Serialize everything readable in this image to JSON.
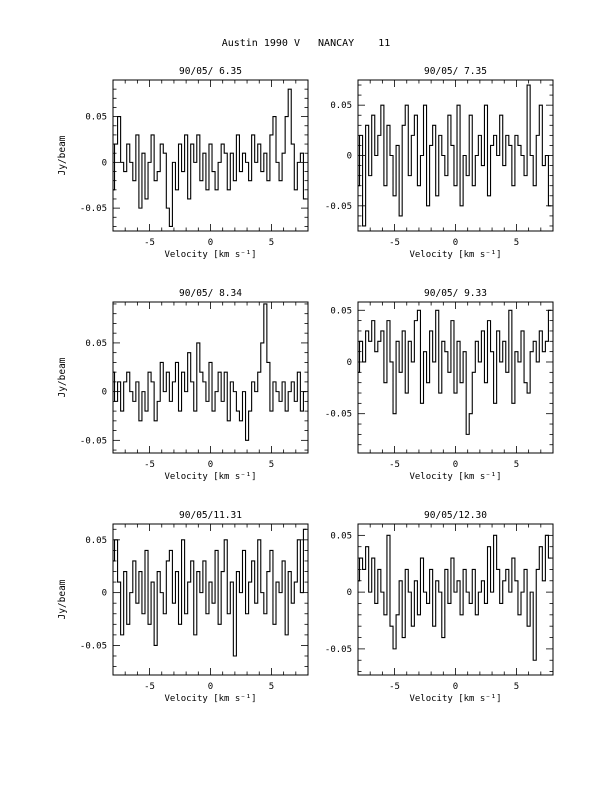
{
  "title": "Austin 1990 V   NANCAY    11",
  "chart_data": [
    {
      "type": "line",
      "title": "90/05/ 6.35",
      "xlabel": "Velocity [km s⁻¹]",
      "ylabel": "Jy/beam",
      "xlim": [
        -8,
        8
      ],
      "ylim": [
        -0.075,
        0.09
      ],
      "xticks": [
        -5,
        0,
        5
      ],
      "xtick_labels": [
        "-5",
        "0",
        "5"
      ],
      "yticks": [
        0.05,
        0,
        -0.05
      ],
      "ytick_labels": [
        "0.05",
        "0",
        "-0.05"
      ],
      "x": [
        -8.0,
        -7.75,
        -7.5,
        -7.25,
        -7.0,
        -6.75,
        -6.5,
        -6.25,
        -6.0,
        -5.75,
        -5.5,
        -5.25,
        -5.0,
        -4.75,
        -4.5,
        -4.25,
        -4.0,
        -3.75,
        -3.5,
        -3.25,
        -3.0,
        -2.75,
        -2.5,
        -2.25,
        -2.0,
        -1.75,
        -1.5,
        -1.25,
        -1.0,
        -0.75,
        -0.5,
        -0.25,
        0.0,
        0.25,
        0.5,
        0.75,
        1.0,
        1.25,
        1.5,
        1.75,
        2.0,
        2.25,
        2.5,
        2.75,
        3.0,
        3.25,
        3.5,
        3.75,
        4.0,
        4.25,
        4.5,
        4.75,
        5.0,
        5.25,
        5.5,
        5.75,
        6.0,
        6.25,
        6.5,
        6.75,
        7.0,
        7.25,
        7.5,
        7.75
      ],
      "y": [
        -0.03,
        0.02,
        0.05,
        0.0,
        -0.01,
        0.02,
        0.0,
        -0.02,
        0.03,
        -0.05,
        0.01,
        -0.04,
        0.0,
        0.03,
        -0.02,
        -0.01,
        0.02,
        0.01,
        -0.05,
        -0.07,
        0.0,
        -0.03,
        0.02,
        -0.01,
        0.03,
        -0.04,
        0.02,
        0.0,
        0.03,
        -0.02,
        0.01,
        -0.03,
        0.02,
        -0.01,
        -0.03,
        0.0,
        0.02,
        0.01,
        -0.03,
        0.01,
        -0.02,
        0.03,
        -0.01,
        0.01,
        0.0,
        -0.02,
        0.03,
        0.0,
        0.02,
        -0.01,
        0.01,
        -0.02,
        0.03,
        0.05,
        0.0,
        -0.02,
        0.01,
        0.05,
        0.08,
        0.02,
        -0.03,
        0.0,
        0.01,
        -0.04
      ]
    },
    {
      "type": "line",
      "title": "90/05/ 7.35",
      "xlabel": "Velocity [km s⁻¹]",
      "ylabel": "",
      "xlim": [
        -8,
        8
      ],
      "ylim": [
        -0.075,
        0.075
      ],
      "xticks": [
        -5,
        0,
        5
      ],
      "xtick_labels": [
        "-5",
        "0",
        "5"
      ],
      "yticks": [
        0.05,
        0,
        -0.05
      ],
      "ytick_labels": [
        "0.05",
        "0",
        "-0.05"
      ],
      "x": [
        -8.0,
        -7.75,
        -7.5,
        -7.25,
        -7.0,
        -6.75,
        -6.5,
        -6.25,
        -6.0,
        -5.75,
        -5.5,
        -5.25,
        -5.0,
        -4.75,
        -4.5,
        -4.25,
        -4.0,
        -3.75,
        -3.5,
        -3.25,
        -3.0,
        -2.75,
        -2.5,
        -2.25,
        -2.0,
        -1.75,
        -1.5,
        -1.25,
        -1.0,
        -0.75,
        -0.5,
        -0.25,
        0.0,
        0.25,
        0.5,
        0.75,
        1.0,
        1.25,
        1.5,
        1.75,
        2.0,
        2.25,
        2.5,
        2.75,
        3.0,
        3.25,
        3.5,
        3.75,
        4.0,
        4.25,
        4.5,
        4.75,
        5.0,
        5.25,
        5.5,
        5.75,
        6.0,
        6.25,
        6.5,
        6.75,
        7.0,
        7.25,
        7.5,
        7.75
      ],
      "y": [
        -0.03,
        0.02,
        -0.07,
        0.03,
        -0.02,
        0.04,
        0.0,
        0.02,
        0.05,
        -0.03,
        0.03,
        0.0,
        -0.04,
        0.01,
        -0.06,
        0.03,
        0.05,
        -0.02,
        0.02,
        0.04,
        -0.03,
        0.0,
        0.05,
        -0.05,
        0.01,
        0.03,
        -0.04,
        0.02,
        0.0,
        -0.02,
        0.04,
        0.01,
        -0.03,
        0.05,
        -0.05,
        0.0,
        -0.02,
        0.04,
        -0.03,
        0.0,
        0.02,
        -0.01,
        0.05,
        -0.04,
        0.01,
        0.02,
        0.0,
        0.04,
        -0.01,
        0.02,
        0.01,
        -0.03,
        0.02,
        0.01,
        0.0,
        -0.02,
        0.07,
        0.0,
        -0.03,
        0.02,
        0.05,
        -0.01,
        0.0,
        -0.05
      ]
    },
    {
      "type": "line",
      "title": "90/05/ 8.34",
      "xlabel": "Velocity [km s⁻¹]",
      "ylabel": "Jy/beam",
      "xlim": [
        -8,
        8
      ],
      "ylim": [
        -0.063,
        0.092
      ],
      "xticks": [
        -5,
        0,
        5
      ],
      "xtick_labels": [
        "-5",
        "0",
        "5"
      ],
      "yticks": [
        0.05,
        0,
        -0.05
      ],
      "ytick_labels": [
        "0.05",
        "0",
        "-0.05"
      ],
      "x": [
        -8.0,
        -7.75,
        -7.5,
        -7.25,
        -7.0,
        -6.75,
        -6.5,
        -6.25,
        -6.0,
        -5.75,
        -5.5,
        -5.25,
        -5.0,
        -4.75,
        -4.5,
        -4.25,
        -4.0,
        -3.75,
        -3.5,
        -3.25,
        -3.0,
        -2.75,
        -2.5,
        -2.25,
        -2.0,
        -1.75,
        -1.5,
        -1.25,
        -1.0,
        -0.75,
        -0.5,
        -0.25,
        0.0,
        0.25,
        0.5,
        0.75,
        1.0,
        1.25,
        1.5,
        1.75,
        2.0,
        2.25,
        2.5,
        2.75,
        3.0,
        3.25,
        3.5,
        3.75,
        4.0,
        4.25,
        4.5,
        4.75,
        5.0,
        5.25,
        5.5,
        5.75,
        6.0,
        6.25,
        6.5,
        6.75,
        7.0,
        7.25,
        7.5,
        7.75
      ],
      "y": [
        0.02,
        -0.01,
        0.01,
        -0.02,
        0.01,
        0.02,
        0.0,
        -0.01,
        0.01,
        -0.03,
        0.0,
        -0.02,
        0.02,
        0.01,
        -0.03,
        -0.01,
        0.03,
        0.0,
        0.02,
        -0.01,
        0.01,
        0.03,
        -0.02,
        0.02,
        0.0,
        0.04,
        0.01,
        -0.02,
        0.05,
        0.02,
        0.01,
        -0.01,
        0.03,
        -0.02,
        0.0,
        0.02,
        -0.01,
        0.02,
        -0.03,
        0.01,
        0.0,
        -0.02,
        -0.03,
        0.0,
        -0.05,
        -0.02,
        0.01,
        0.0,
        0.02,
        0.05,
        0.09,
        0.03,
        -0.02,
        0.01,
        0.0,
        -0.01,
        0.01,
        -0.02,
        0.0,
        0.01,
        -0.01,
        0.02,
        -0.02,
        0.0
      ]
    },
    {
      "type": "line",
      "title": "90/05/ 9.33",
      "xlabel": "Velocity [km s⁻¹]",
      "ylabel": "",
      "xlim": [
        -8,
        8
      ],
      "ylim": [
        -0.088,
        0.058
      ],
      "xticks": [
        -5,
        0,
        5
      ],
      "xtick_labels": [
        "-5",
        "0",
        "5"
      ],
      "yticks": [
        0.05,
        0,
        -0.05
      ],
      "ytick_labels": [
        "0.05",
        "0",
        "-0.05"
      ],
      "x": [
        -8.0,
        -7.75,
        -7.5,
        -7.25,
        -7.0,
        -6.75,
        -6.5,
        -6.25,
        -6.0,
        -5.75,
        -5.5,
        -5.25,
        -5.0,
        -4.75,
        -4.5,
        -4.25,
        -4.0,
        -3.75,
        -3.5,
        -3.25,
        -3.0,
        -2.75,
        -2.5,
        -2.25,
        -2.0,
        -1.75,
        -1.5,
        -1.25,
        -1.0,
        -0.75,
        -0.5,
        -0.25,
        0.0,
        0.25,
        0.5,
        0.75,
        1.0,
        1.25,
        1.5,
        1.75,
        2.0,
        2.25,
        2.5,
        2.75,
        3.0,
        3.25,
        3.5,
        3.75,
        4.0,
        4.25,
        4.5,
        4.75,
        5.0,
        5.25,
        5.5,
        5.75,
        6.0,
        6.25,
        6.5,
        6.75,
        7.0,
        7.25,
        7.5,
        7.75
      ],
      "y": [
        -0.01,
        0.02,
        0.0,
        0.03,
        0.02,
        0.04,
        0.01,
        0.02,
        0.03,
        -0.02,
        0.04,
        0.0,
        -0.05,
        0.02,
        -0.01,
        0.03,
        -0.03,
        0.02,
        0.0,
        0.04,
        0.05,
        -0.04,
        0.01,
        -0.02,
        0.03,
        0.0,
        0.05,
        -0.03,
        0.02,
        0.01,
        -0.01,
        0.04,
        -0.03,
        0.02,
        -0.02,
        0.01,
        -0.07,
        -0.05,
        -0.01,
        0.02,
        0.0,
        0.03,
        -0.02,
        0.04,
        0.01,
        -0.04,
        0.03,
        0.0,
        0.02,
        -0.01,
        0.05,
        -0.04,
        0.01,
        0.0,
        0.03,
        -0.02,
        -0.03,
        0.01,
        0.02,
        0.0,
        0.03,
        0.01,
        0.02,
        0.05
      ]
    },
    {
      "type": "line",
      "title": "90/05/11.31",
      "xlabel": "Velocity [km s⁻¹]",
      "ylabel": "Jy/beam",
      "xlim": [
        -8,
        8
      ],
      "ylim": [
        -0.078,
        0.065
      ],
      "xticks": [
        -5,
        0,
        5
      ],
      "xtick_labels": [
        "-5",
        "0",
        "5"
      ],
      "yticks": [
        0.05,
        0,
        -0.05
      ],
      "ytick_labels": [
        "0.05",
        "0",
        "-0.05"
      ],
      "x": [
        -8.0,
        -7.75,
        -7.5,
        -7.25,
        -7.0,
        -6.75,
        -6.5,
        -6.25,
        -6.0,
        -5.75,
        -5.5,
        -5.25,
        -5.0,
        -4.75,
        -4.5,
        -4.25,
        -4.0,
        -3.75,
        -3.5,
        -3.25,
        -3.0,
        -2.75,
        -2.5,
        -2.25,
        -2.0,
        -1.75,
        -1.5,
        -1.25,
        -1.0,
        -0.75,
        -0.5,
        -0.25,
        0.0,
        0.25,
        0.5,
        0.75,
        1.0,
        1.25,
        1.5,
        1.75,
        2.0,
        2.25,
        2.5,
        2.75,
        3.0,
        3.25,
        3.5,
        3.75,
        4.0,
        4.25,
        4.5,
        4.75,
        5.0,
        5.25,
        5.5,
        5.75,
        6.0,
        6.25,
        6.5,
        6.75,
        7.0,
        7.25,
        7.5,
        7.75
      ],
      "y": [
        0.03,
        0.05,
        0.01,
        -0.04,
        0.02,
        -0.03,
        0.0,
        0.03,
        -0.01,
        0.02,
        -0.02,
        0.04,
        -0.03,
        0.01,
        -0.05,
        0.02,
        0.0,
        -0.02,
        0.03,
        0.04,
        -0.01,
        0.02,
        -0.03,
        0.05,
        -0.02,
        0.01,
        0.03,
        -0.04,
        0.02,
        0.0,
        0.03,
        -0.02,
        0.01,
        -0.01,
        0.04,
        -0.03,
        0.02,
        0.05,
        -0.02,
        0.01,
        -0.06,
        0.02,
        0.0,
        0.04,
        -0.02,
        0.01,
        0.03,
        -0.01,
        0.05,
        0.0,
        -0.02,
        0.02,
        0.04,
        -0.03,
        0.01,
        0.0,
        0.03,
        -0.04,
        0.02,
        -0.01,
        0.01,
        0.05,
        0.0,
        0.06
      ]
    },
    {
      "type": "line",
      "title": "90/05/12.30",
      "xlabel": "Velocity [km s⁻¹]",
      "ylabel": "",
      "xlim": [
        -8,
        8
      ],
      "ylim": [
        -0.073,
        0.06
      ],
      "xticks": [
        -5,
        0,
        5
      ],
      "xtick_labels": [
        "-5",
        "0",
        "5"
      ],
      "yticks": [
        0.05,
        0,
        -0.05
      ],
      "ytick_labels": [
        "0.05",
        "0",
        "-0.05"
      ],
      "x": [
        -8.0,
        -7.75,
        -7.5,
        -7.25,
        -7.0,
        -6.75,
        -6.5,
        -6.25,
        -6.0,
        -5.75,
        -5.5,
        -5.25,
        -5.0,
        -4.75,
        -4.5,
        -4.25,
        -4.0,
        -3.75,
        -3.5,
        -3.25,
        -3.0,
        -2.75,
        -2.5,
        -2.25,
        -2.0,
        -1.75,
        -1.5,
        -1.25,
        -1.0,
        -0.75,
        -0.5,
        -0.25,
        0.0,
        0.25,
        0.5,
        0.75,
        1.0,
        1.25,
        1.5,
        1.75,
        2.0,
        2.25,
        2.5,
        2.75,
        3.0,
        3.25,
        3.5,
        3.75,
        4.0,
        4.25,
        4.5,
        4.75,
        5.0,
        5.25,
        5.5,
        5.75,
        6.0,
        6.25,
        6.5,
        6.75,
        7.0,
        7.25,
        7.5,
        7.75
      ],
      "y": [
        0.01,
        0.03,
        0.02,
        0.04,
        0.0,
        0.03,
        -0.01,
        0.02,
        0.0,
        -0.02,
        0.05,
        -0.03,
        -0.05,
        -0.02,
        0.01,
        -0.04,
        0.02,
        0.0,
        -0.03,
        0.01,
        -0.02,
        0.03,
        0.0,
        -0.01,
        0.02,
        -0.03,
        0.01,
        0.0,
        -0.04,
        0.02,
        -0.01,
        0.03,
        0.0,
        0.01,
        -0.02,
        0.02,
        0.0,
        -0.01,
        0.02,
        -0.02,
        0.0,
        0.01,
        -0.01,
        0.04,
        0.0,
        0.05,
        0.02,
        -0.01,
        0.01,
        0.02,
        0.0,
        0.03,
        0.01,
        -0.02,
        0.0,
        0.02,
        -0.03,
        0.0,
        -0.06,
        0.02,
        0.04,
        0.01,
        0.05,
        0.03
      ]
    }
  ]
}
